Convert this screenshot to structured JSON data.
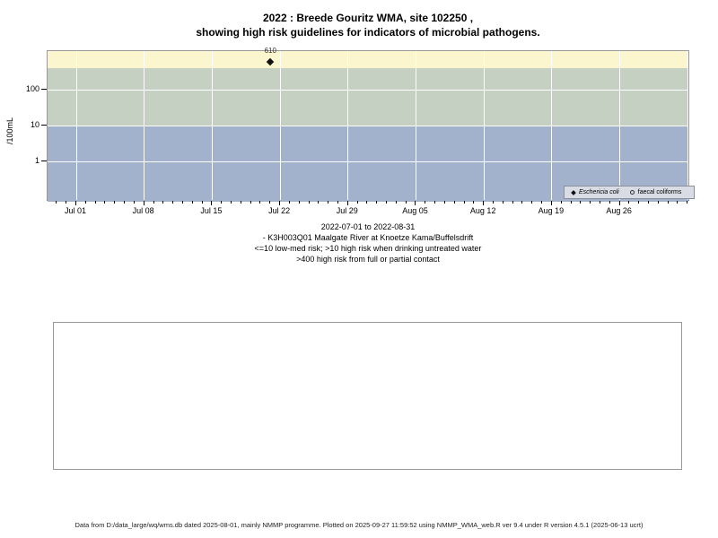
{
  "title": {
    "line1": "2022 : Breede Gouritz WMA, site 102250 ,",
    "line2": "showing high risk guidelines for indicators of microbial pathogens."
  },
  "subtitle_lines": [
    "2022-07-01 to 2022-08-31",
    "- K3H003Q01 Maalgate River at Knoetze Kama/Buffelsdrift",
    "<=10 low-med risk; >10 high risk when drinking untreated water",
    ">400 high risk from full or partial contact"
  ],
  "footer": "Data from D:/data_large/wq/wms.db dated 2025-08-01, mainly NMMP programme. Plotted on 2025-09-27 11:59:52 using NMMP_WMA_web.R ver 9.4 under R version 4.5.1 (2025-06-13 ucrt)",
  "chart_data": {
    "type": "scatter",
    "title": "2022 : Breede Gouritz WMA, site 102250, showing high risk guidelines for indicators of microbial pathogens.",
    "x_range": [
      "2022-07-01",
      "2022-08-31"
    ],
    "y_scale": "log10",
    "ylabel": "/100mL",
    "grid": true,
    "y_ticks": [
      {
        "label": "100",
        "value": 100
      },
      {
        "label": "10",
        "value": 10
      },
      {
        "label": "1",
        "value": 1
      }
    ],
    "x_ticks": [
      {
        "label": "Jul 01",
        "day": 0
      },
      {
        "label": "Jul 08",
        "day": 7
      },
      {
        "label": "Jul 15",
        "day": 14
      },
      {
        "label": "Jul 22",
        "day": 21
      },
      {
        "label": "Jul 29",
        "day": 28
      },
      {
        "label": "Aug 05",
        "day": 35
      },
      {
        "label": "Aug 12",
        "day": 42
      },
      {
        "label": "Aug 19",
        "day": 49
      },
      {
        "label": "Aug 26",
        "day": 56
      }
    ],
    "grid_days": [
      0,
      7,
      14,
      21,
      28,
      35,
      42,
      49,
      56,
      63
    ],
    "minor_tick_day_range": [
      -2,
      63
    ],
    "bands": [
      {
        "name": "high risk from full or partial contact (>400)",
        "from": 400,
        "to": 1200,
        "color": "#fbf6cd"
      },
      {
        "name": "high risk when drinking untreated water (10-400)",
        "from": 10,
        "to": 400,
        "color": "#c5cfc2"
      },
      {
        "name": "low-med risk (<=10)",
        "from": 0.075,
        "to": 10,
        "color": "#a2b2cc"
      }
    ],
    "series": [
      {
        "name": "Eschericia coli",
        "marker": "filled-diamond",
        "italic": true,
        "points": [
          {
            "date": "2022-07-21",
            "day": 20,
            "value": 610,
            "label": "610"
          }
        ]
      },
      {
        "name": "faecal coliforms",
        "marker": "open-circle",
        "italic": false,
        "points": []
      }
    ],
    "legend_position": "bottom-right",
    "guidelines": {
      "low_med_max": 10,
      "high_risk_contact_min": 400
    }
  },
  "colors": {
    "band_high_contact": "#fbf6cd",
    "band_high_drinking": "#c5cfc2",
    "band_low_med": "#a2b2cc",
    "grid": "#ffffff",
    "plot_border": "#999999",
    "marker": "#111111",
    "legend_bg": "#d9dce5",
    "panel_border": "#999999"
  }
}
